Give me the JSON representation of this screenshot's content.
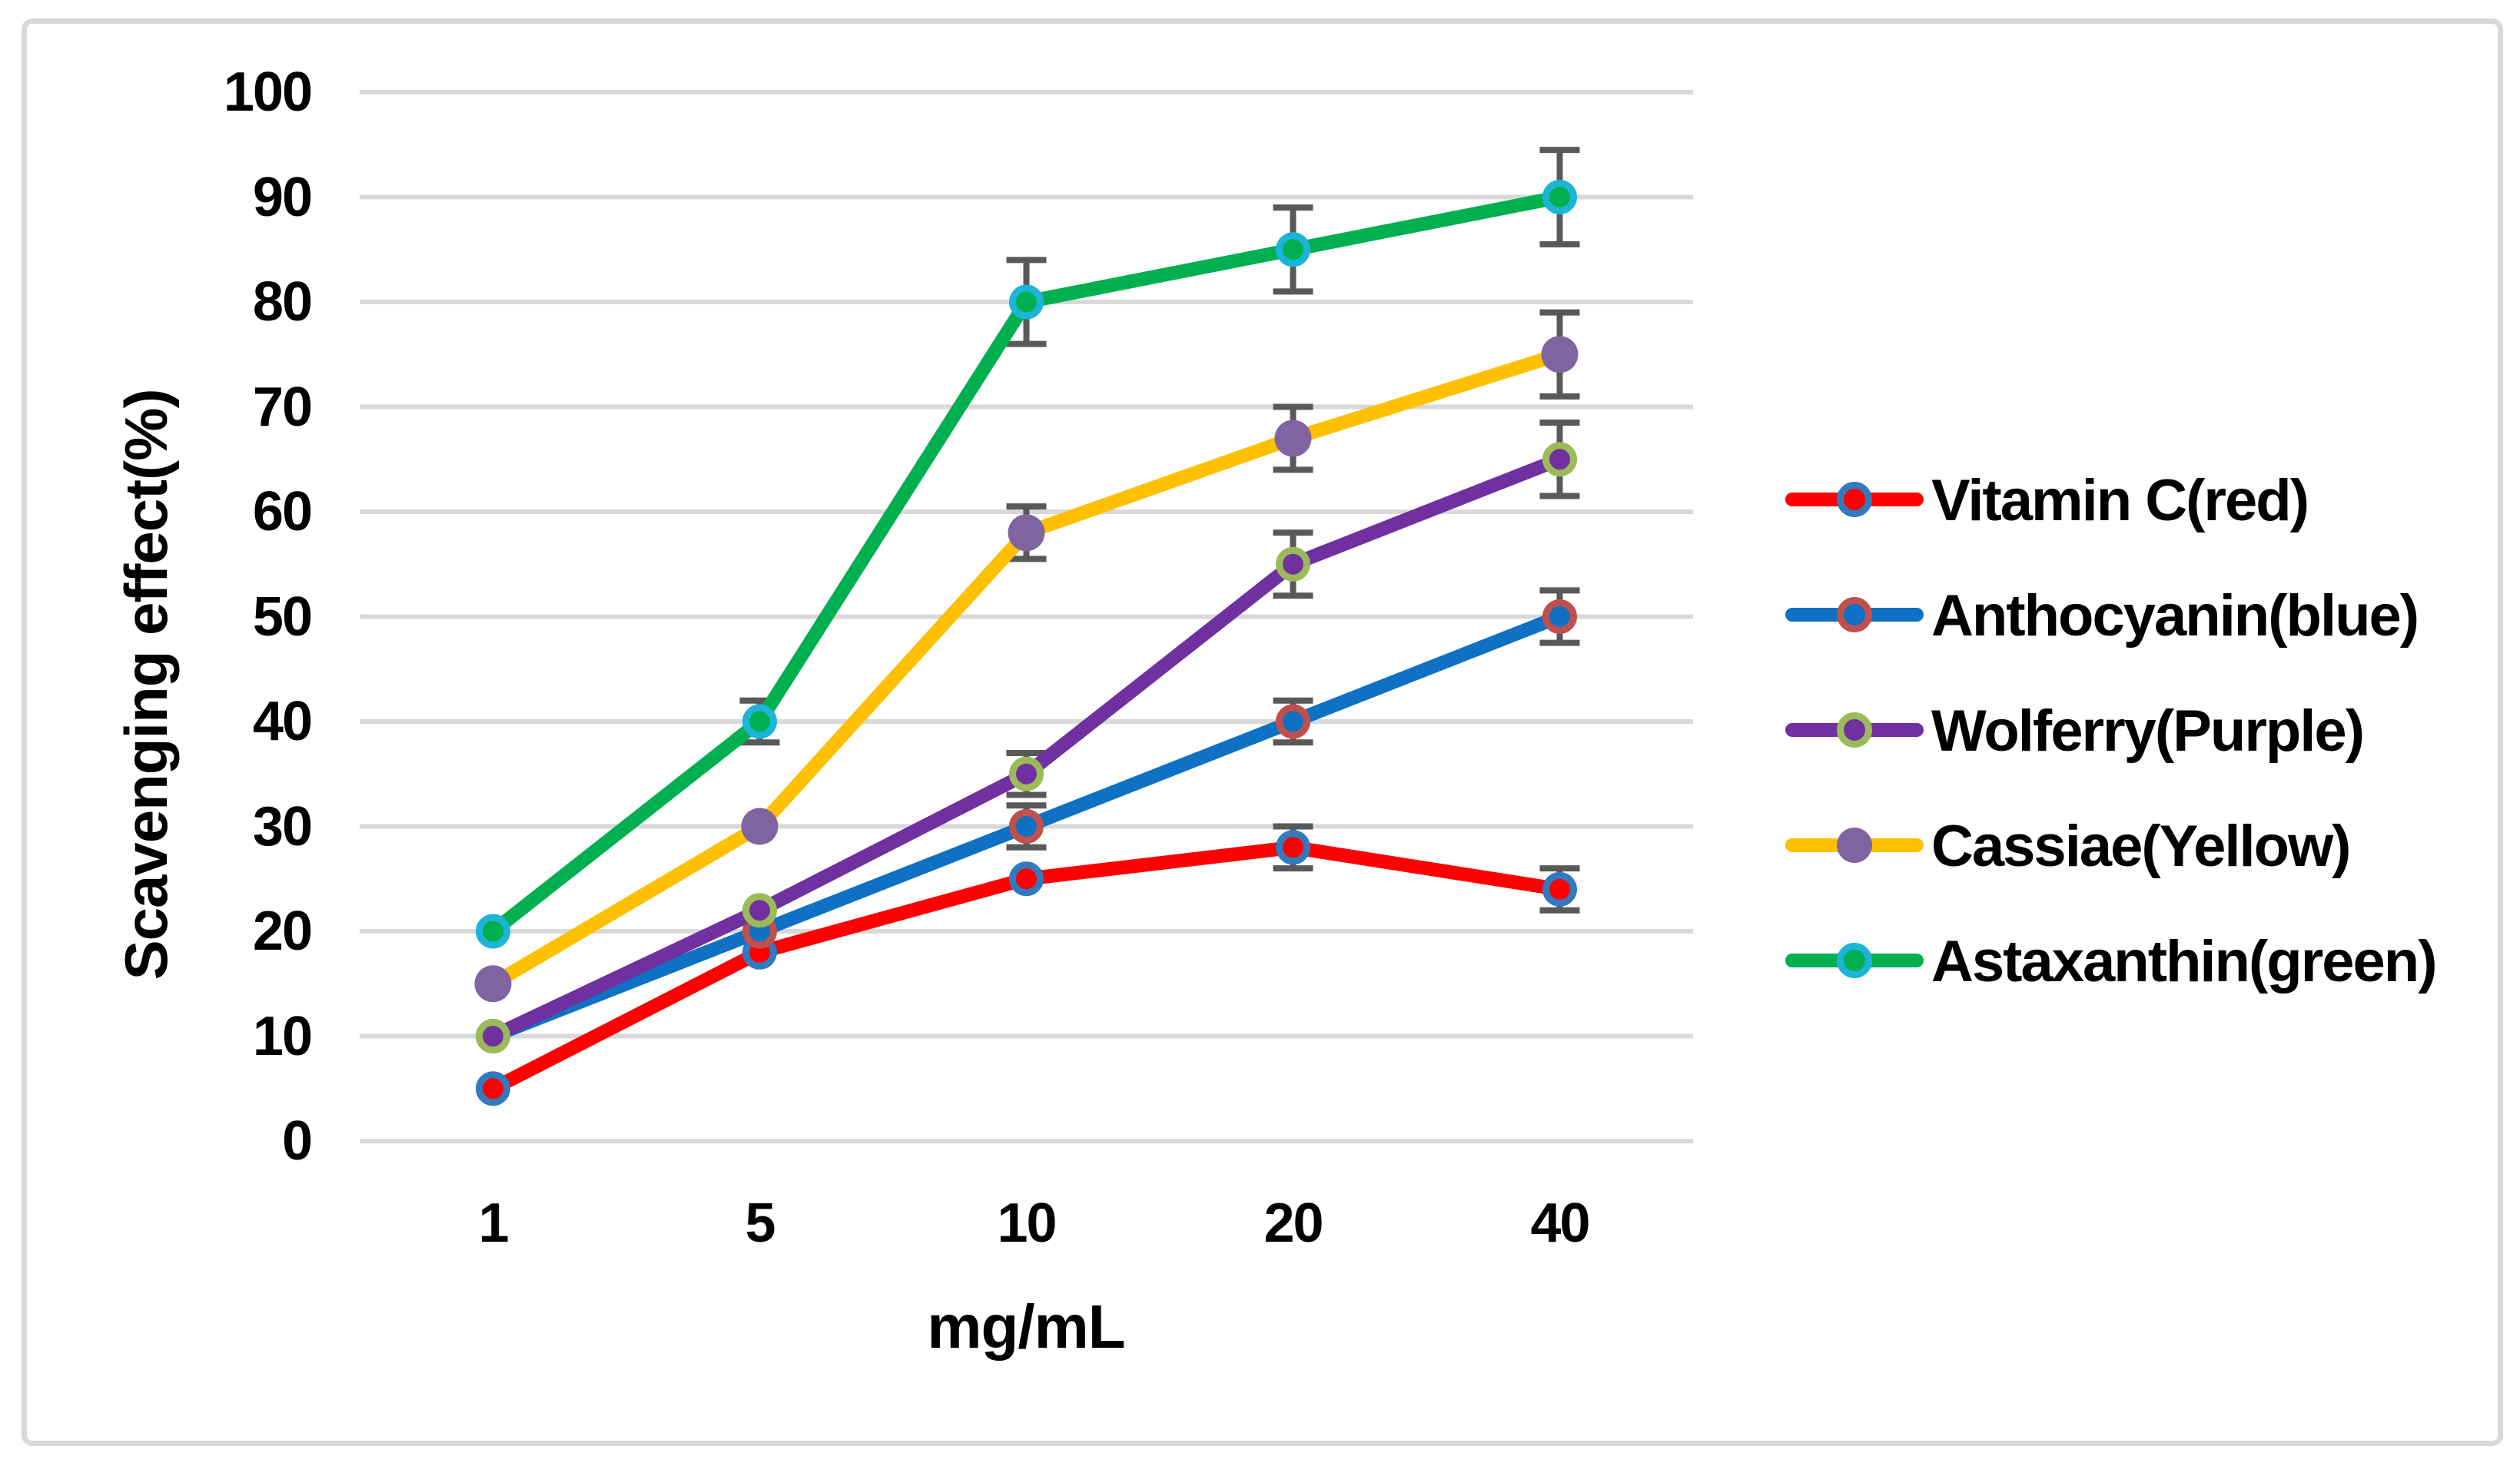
{
  "chart_data": {
    "type": "line",
    "categories": [
      "1",
      "5",
      "10",
      "20",
      "40"
    ],
    "series": [
      {
        "name": "Vitamin C(red)",
        "line_color": "#FF0000",
        "marker_fill": "#FF0000",
        "marker_ring": "#3379BE",
        "values": [
          5,
          18,
          25,
          28,
          24
        ],
        "errors": [
          0,
          0,
          0,
          2,
          2
        ]
      },
      {
        "name": "Anthocyanin(blue)",
        "line_color": "#0E71C3",
        "marker_fill": "#0E71C3",
        "marker_ring": "#C0504D",
        "values": [
          10,
          20,
          30,
          40,
          50
        ],
        "errors": [
          0,
          0,
          2,
          2,
          2.5
        ]
      },
      {
        "name": "Wolferry(Purple)",
        "line_color": "#7030A0",
        "marker_fill": "#7030A0",
        "marker_ring": "#9BBB59",
        "values": [
          10,
          22,
          35,
          55,
          65
        ],
        "errors": [
          0,
          0,
          2,
          3,
          3.5
        ]
      },
      {
        "name": "Cassiae(Yellow)",
        "line_color": "#FFC000",
        "marker_fill": "#8064A2",
        "marker_ring": null,
        "values": [
          15,
          30,
          58,
          67,
          75
        ],
        "errors": [
          0,
          0,
          2.5,
          3,
          4
        ]
      },
      {
        "name": "Astaxanthin(green)",
        "line_color": "#00B050",
        "marker_fill": "#00B050",
        "marker_ring": "#1CB5D8",
        "values": [
          20,
          40,
          80,
          85,
          90
        ],
        "errors": [
          0,
          2,
          4,
          4,
          4.5
        ]
      }
    ],
    "xlabel": "mg/mL",
    "ylabel": "Scavenging effect(%)",
    "ylim": [
      0,
      100
    ],
    "ytick_step": 10,
    "yticks": [
      0,
      10,
      20,
      30,
      40,
      50,
      60,
      70,
      80,
      90,
      100
    ],
    "grid": "horizontal",
    "legend_position": "right",
    "error_bar_color": "#595959",
    "grid_color": "#D9D9D9",
    "border_color": "#D9D9D9",
    "text_color": "#000000"
  }
}
